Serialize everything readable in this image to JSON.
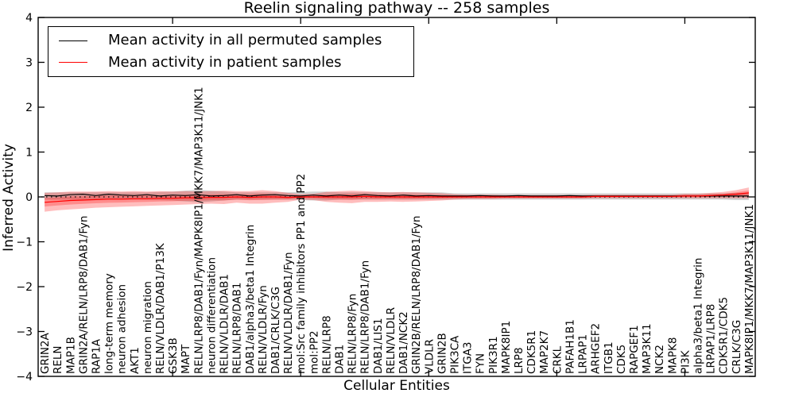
{
  "chart_data": {
    "type": "line",
    "title": "Reelin signaling pathway -- 258 samples",
    "xlabel": "Cellular Entities",
    "ylabel": "Inferred Activity",
    "ylim": [
      -4,
      4
    ],
    "yticks": [
      4,
      3,
      2,
      1,
      0,
      -1,
      -2,
      -3,
      -4
    ],
    "ytick_labels": [
      "4",
      "3",
      "2",
      "1",
      "0",
      "−1",
      "−2",
      "−3",
      "−4"
    ],
    "x_major_tick_every": 10,
    "grid": false,
    "legend_position": "upper left",
    "categories": [
      "GRIN2A",
      "RELN",
      "MAP1B",
      "GRIN2A/RELN/LRP8/DAB1/Fyn",
      "RAP1A",
      "long-term memory",
      "neuron adhesion",
      "AKT1",
      "neuron migration",
      "RELN/VLDLR/DAB1/P13K",
      "GSK3B",
      "MAPT",
      "RELN/LRP8/DAB1/Fyn/MAPK8IP1/MKK7/MAP3K11/JNK1",
      "neuron differentiation",
      "RELN/VLDLR/DAB1",
      "RELN/LRP8/DAB1",
      "DAB1/alpha3/beta1 Integrin",
      "RELN/VLDLR/Fyn",
      "DAB1/CRLK/C3G",
      "RELN/VLDLR/DAB1/Fyn",
      "mol:Src family inhibitors PP1 and PP2",
      "mol:PP2",
      "RELN/LRP8",
      "DAB1",
      "RELN/LRP8/Fyn",
      "RELN/LRP8/DAB1/Fyn",
      "DAB1/LIS1",
      "RELN/VLDLR",
      "DAB1/NCK2",
      "GRIN2B/RELN/LRP8/DAB1/Fyn",
      "VLDLR",
      "GRIN2B",
      "PIK3CA",
      "ITGA3",
      "FYN",
      "PIK3R1",
      "MAPK8IP1",
      "LRP8",
      "CDK5R1",
      "MAP2K7",
      "CRKL",
      "PAFAH1B1",
      "LRPAP1",
      "ARHGEF2",
      "ITGB1",
      "CDK5",
      "RAPGEF1",
      "MAP3K11",
      "NCK2",
      "MAPK8",
      "PI3K",
      "alpha3/beta1 Integrin",
      "LRPAP1/LRP8",
      "CDK5R1/CDK5",
      "CRLK/C3G",
      "MAPK8IP1/MKK7/MAP3K11/JNK1"
    ],
    "series": [
      {
        "name": "Mean activity in all permuted samples",
        "color": "#000000",
        "values": [
          0.03,
          0.02,
          0.05,
          0.06,
          0.03,
          0.06,
          0.04,
          0.03,
          0.05,
          0.02,
          0.04,
          0.03,
          0.05,
          0.02,
          0.03,
          0.05,
          0.02,
          0.04,
          0.05,
          0.03,
          0.02,
          0.04,
          0.02,
          0.04,
          0.02,
          0.05,
          0.03,
          0.02,
          0.04,
          0.02,
          0.03,
          0.02,
          0.02,
          0.02,
          0.03,
          0.02,
          0.02,
          0.03,
          0.02,
          0.02,
          0.02,
          0.03,
          0.02,
          0.02,
          0.02,
          0.02,
          0.02,
          0.02,
          0.02,
          0.02,
          0.02,
          0.02,
          0.02,
          0.02,
          0.02,
          0.02
        ]
      },
      {
        "name": "Mean activity in patient samples",
        "color": "#ff0000",
        "values": [
          -0.12,
          -0.1,
          -0.08,
          -0.07,
          -0.06,
          -0.05,
          -0.05,
          -0.04,
          -0.04,
          -0.03,
          -0.03,
          -0.02,
          -0.02,
          -0.01,
          -0.01,
          0.0,
          -0.01,
          0.0,
          0.0,
          -0.01,
          0.0,
          0.0,
          0.0,
          0.0,
          0.0,
          0.01,
          0.0,
          0.0,
          0.0,
          0.0,
          0.0,
          0.0,
          0.0,
          0.0,
          0.0,
          0.0,
          0.0,
          0.0,
          0.0,
          0.0,
          0.0,
          0.0,
          0.0,
          0.01,
          0.01,
          0.01,
          0.01,
          0.01,
          0.01,
          0.01,
          0.02,
          0.02,
          0.03,
          0.04,
          0.06,
          0.09
        ]
      }
    ],
    "bands": [
      {
        "name": "permuted samples spread",
        "color": "#7f7f7f",
        "opacity": 0.35,
        "overlay": false,
        "center": [
          0.02,
          0.02,
          0.02,
          0.02,
          0.02,
          0.02,
          0.02,
          0.02,
          0.02,
          0.02,
          0.02,
          0.02,
          0.02,
          0.02,
          0.02,
          0.02,
          0.02,
          0.02,
          0.02,
          0.02,
          0.02,
          0.02,
          0.02,
          0.02,
          0.02,
          0.02,
          0.02,
          0.02,
          0.02,
          0.02,
          0.02,
          0.02,
          0.01,
          0.01,
          0.01,
          0.01,
          0.01,
          0.01,
          0.01,
          0.01,
          0.01,
          0.01,
          0.01,
          0.01,
          0.01,
          0.01,
          0.01,
          0.01,
          0.01,
          0.01,
          0.01,
          0.01,
          0.01,
          0.01,
          0.01,
          0.01
        ],
        "half_width": [
          0.08,
          0.08,
          0.08,
          0.08,
          0.08,
          0.08,
          0.08,
          0.08,
          0.08,
          0.09,
          0.1,
          0.12,
          0.14,
          0.12,
          0.1,
          0.08,
          0.08,
          0.08,
          0.08,
          0.08,
          0.09,
          0.1,
          0.1,
          0.08,
          0.08,
          0.08,
          0.08,
          0.08,
          0.08,
          0.08,
          0.08,
          0.08,
          0.07,
          0.07,
          0.07,
          0.07,
          0.07,
          0.07,
          0.07,
          0.07,
          0.07,
          0.07,
          0.07,
          0.07,
          0.07,
          0.07,
          0.07,
          0.07,
          0.07,
          0.07,
          0.07,
          0.07,
          0.07,
          0.07,
          0.08,
          0.08
        ]
      },
      {
        "name": "patient samples spread",
        "color": "#ff0000",
        "opacity": 0.26,
        "overlay": true,
        "center": [
          -0.12,
          -0.1,
          -0.08,
          -0.07,
          -0.06,
          -0.05,
          -0.05,
          -0.04,
          -0.04,
          -0.03,
          -0.03,
          -0.02,
          -0.02,
          -0.01,
          -0.01,
          0.0,
          -0.01,
          0.0,
          0.0,
          -0.01,
          0.0,
          0.0,
          0.0,
          0.0,
          0.0,
          0.01,
          0.0,
          0.0,
          0.0,
          0.0,
          0.0,
          0.0,
          0.0,
          0.0,
          0.0,
          0.0,
          0.0,
          0.0,
          0.0,
          0.0,
          0.0,
          0.0,
          0.0,
          0.01,
          0.01,
          0.01,
          0.01,
          0.01,
          0.01,
          0.01,
          0.02,
          0.02,
          0.03,
          0.04,
          0.06,
          0.09
        ],
        "half_width": [
          0.21,
          0.2,
          0.2,
          0.19,
          0.18,
          0.18,
          0.17,
          0.17,
          0.16,
          0.16,
          0.15,
          0.15,
          0.14,
          0.14,
          0.15,
          0.13,
          0.14,
          0.15,
          0.13,
          0.1,
          0.06,
          0.07,
          0.11,
          0.13,
          0.14,
          0.12,
          0.11,
          0.1,
          0.11,
          0.1,
          0.09,
          0.08,
          0.06,
          0.05,
          0.05,
          0.05,
          0.04,
          0.04,
          0.04,
          0.04,
          0.04,
          0.04,
          0.04,
          0.04,
          0.04,
          0.04,
          0.04,
          0.04,
          0.04,
          0.04,
          0.05,
          0.05,
          0.06,
          0.07,
          0.09,
          0.12
        ]
      }
    ],
    "zero_line": {
      "value": 0,
      "style": "dotted",
      "color": "#000000"
    }
  }
}
